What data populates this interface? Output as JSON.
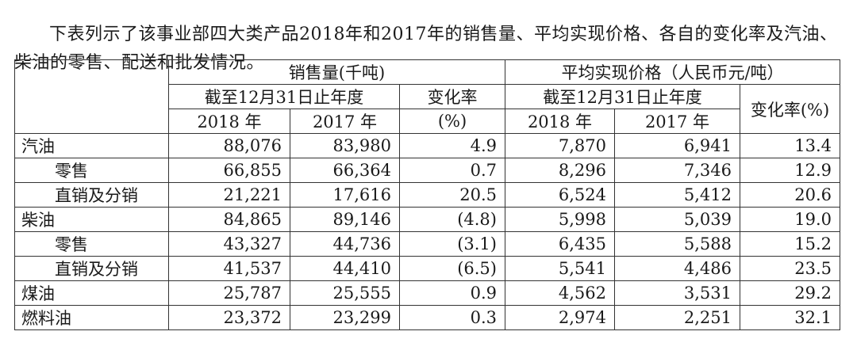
{
  "intro": "下表列示了该事业部四大类产品2018年和2017年的销售量、平均实现价格、各自的变化率及汽油、柴油的零售、配送和批发情况。",
  "table": {
    "header": {
      "sales_volume": "销售量(千吨)",
      "avg_price": "平均实现价格（人民币元/吨）",
      "period": "截至12月31日止年度",
      "change_rate_line1": "变化率",
      "change_rate_line2": "(%)",
      "change_rate_full": "变化率(%)",
      "year_2018": "2018 年",
      "year_2017": "2017 年"
    },
    "rows": [
      {
        "label": "汽油",
        "sub": false,
        "vol_2018": "88,076",
        "vol_2017": "83,980",
        "vol_change": "4.9",
        "price_2018": "7,870",
        "price_2017": "6,941",
        "price_change": "13.4"
      },
      {
        "label": "零售",
        "sub": true,
        "vol_2018": "66,855",
        "vol_2017": "66,364",
        "vol_change": "0.7",
        "price_2018": "8,296",
        "price_2017": "7,346",
        "price_change": "12.9"
      },
      {
        "label": "直销及分销",
        "sub": true,
        "vol_2018": "21,221",
        "vol_2017": "17,616",
        "vol_change": "20.5",
        "price_2018": "6,524",
        "price_2017": "5,412",
        "price_change": "20.6"
      },
      {
        "label": "柴油",
        "sub": false,
        "vol_2018": "84,865",
        "vol_2017": "89,146",
        "vol_change": "(4.8)",
        "price_2018": "5,998",
        "price_2017": "5,039",
        "price_change": "19.0"
      },
      {
        "label": "零售",
        "sub": true,
        "vol_2018": "43,327",
        "vol_2017": "44,736",
        "vol_change": "(3.1)",
        "price_2018": "6,435",
        "price_2017": "5,588",
        "price_change": "15.2"
      },
      {
        "label": "直销及分销",
        "sub": true,
        "vol_2018": "41,537",
        "vol_2017": "44,410",
        "vol_change": "(6.5)",
        "price_2018": "5,541",
        "price_2017": "4,486",
        "price_change": "23.5"
      },
      {
        "label": "煤油",
        "sub": false,
        "vol_2018": "25,787",
        "vol_2017": "25,555",
        "vol_change": "0.9",
        "price_2018": "4,562",
        "price_2017": "3,531",
        "price_change": "29.2"
      },
      {
        "label": "燃料油",
        "sub": false,
        "vol_2018": "23,372",
        "vol_2017": "23,299",
        "vol_change": "0.3",
        "price_2018": "2,974",
        "price_2017": "2,251",
        "price_change": "32.1"
      }
    ]
  }
}
